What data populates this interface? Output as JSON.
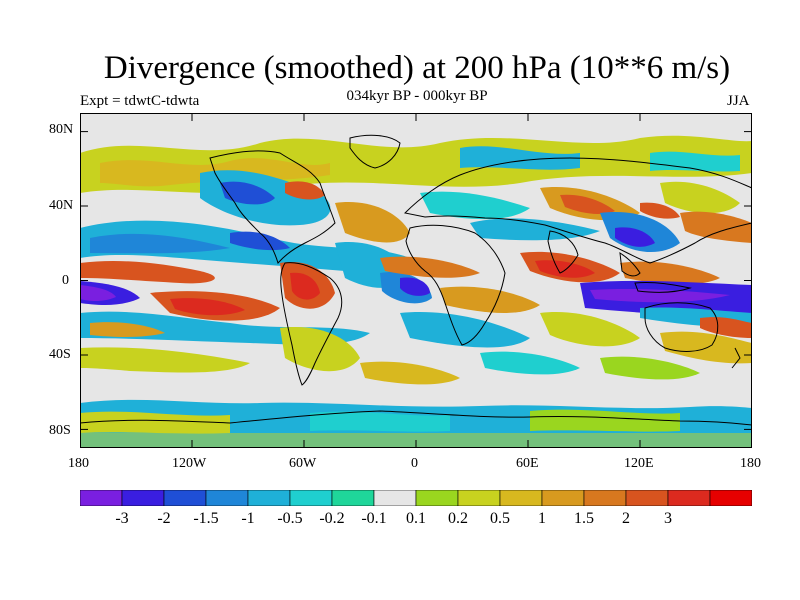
{
  "title": "Divergence (smoothed) at 200 hPa (10**6 m/s)",
  "experiment": "Expt = tdwtC-tdwta",
  "period": "034kyr BP - 000kyr BP",
  "season": "JJA",
  "lat_ticks": [
    "80N",
    "40N",
    "0",
    "40S",
    "80S"
  ],
  "lon_ticks": [
    "180",
    "120W",
    "60W",
    "0",
    "60E",
    "120E",
    "180"
  ],
  "colorbar": {
    "colors": [
      "#7a1fe0",
      "#3a1ee0",
      "#1f4fd6",
      "#1f86d8",
      "#1fb0d8",
      "#1fcfcf",
      "#1fd69a",
      "#e6e6e6",
      "#9ad61f",
      "#c8d21f",
      "#d8b81f",
      "#d89a1f",
      "#d8781f",
      "#d8541f",
      "#dc2a1f",
      "#e60000"
    ],
    "labels": [
      "-3",
      "-2",
      "-1.5",
      "-1",
      "-0.5",
      "-0.2",
      "-0.1",
      "0.1",
      "0.2",
      "0.5",
      "1",
      "1.5",
      "2",
      "3"
    ]
  }
}
